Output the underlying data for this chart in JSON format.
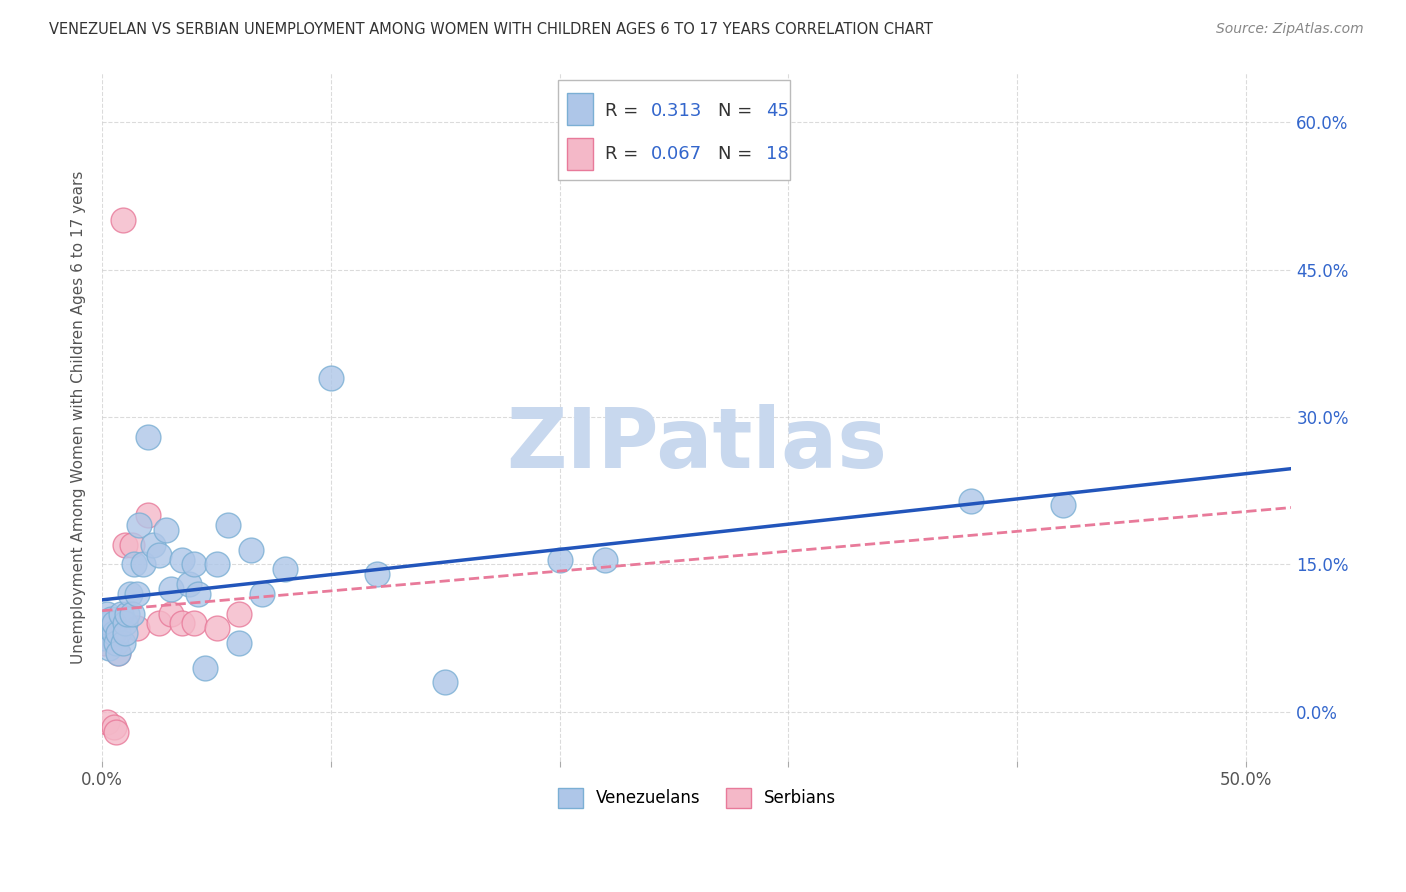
{
  "title": "VENEZUELAN VS SERBIAN UNEMPLOYMENT AMONG WOMEN WITH CHILDREN AGES 6 TO 17 YEARS CORRELATION CHART",
  "source": "Source: ZipAtlas.com",
  "ylabel": "Unemployment Among Women with Children Ages 6 to 17 years",
  "xlim": [
    0.0,
    0.52
  ],
  "ylim": [
    -0.05,
    0.65
  ],
  "yticks": [
    0.0,
    0.15,
    0.3,
    0.45,
    0.6
  ],
  "right_ytick_labels": [
    "0.0%",
    "15.0%",
    "30.0%",
    "45.0%",
    "60.0%"
  ],
  "venezuelan_color": "#aec6e8",
  "venezuelan_edge": "#7bafd4",
  "serbian_color": "#f4b8c8",
  "serbian_edge": "#e87a9a",
  "line_blue": "#2255bb",
  "line_pink": "#e87a9a",
  "r_venezuelan": 0.313,
  "n_venezuelan": 45,
  "r_serbian": 0.067,
  "n_serbian": 18,
  "watermark_text": "ZIPatlas",
  "watermark_color": "#c8d8ee",
  "background_color": "#ffffff",
  "grid_color": "#cccccc",
  "title_color": "#333333",
  "label_color": "#555555",
  "right_axis_color": "#3366cc",
  "ven_x": [
    0.0,
    0.001,
    0.002,
    0.003,
    0.003,
    0.004,
    0.005,
    0.005,
    0.006,
    0.007,
    0.007,
    0.008,
    0.009,
    0.01,
    0.01,
    0.011,
    0.012,
    0.013,
    0.014,
    0.015,
    0.016,
    0.018,
    0.02,
    0.022,
    0.025,
    0.028,
    0.03,
    0.035,
    0.038,
    0.04,
    0.042,
    0.045,
    0.05,
    0.055,
    0.06,
    0.065,
    0.07,
    0.08,
    0.1,
    0.12,
    0.15,
    0.2,
    0.22,
    0.38,
    0.42
  ],
  "ven_y": [
    0.085,
    0.075,
    0.1,
    0.09,
    0.065,
    0.095,
    0.08,
    0.09,
    0.07,
    0.08,
    0.06,
    0.1,
    0.07,
    0.09,
    0.08,
    0.1,
    0.12,
    0.1,
    0.15,
    0.12,
    0.19,
    0.15,
    0.28,
    0.17,
    0.16,
    0.185,
    0.125,
    0.155,
    0.13,
    0.15,
    0.12,
    0.045,
    0.15,
    0.19,
    0.07,
    0.165,
    0.12,
    0.145,
    0.34,
    0.14,
    0.03,
    0.155,
    0.155,
    0.215,
    0.21
  ],
  "ser_x": [
    0.0,
    0.001,
    0.002,
    0.004,
    0.005,
    0.006,
    0.007,
    0.009,
    0.01,
    0.013,
    0.015,
    0.02,
    0.025,
    0.03,
    0.035,
    0.04,
    0.05,
    0.06
  ],
  "ser_y": [
    0.08,
    0.07,
    -0.01,
    0.075,
    -0.015,
    -0.02,
    0.06,
    0.5,
    0.17,
    0.17,
    0.085,
    0.2,
    0.09,
    0.1,
    0.09,
    0.09,
    0.085,
    0.1
  ]
}
